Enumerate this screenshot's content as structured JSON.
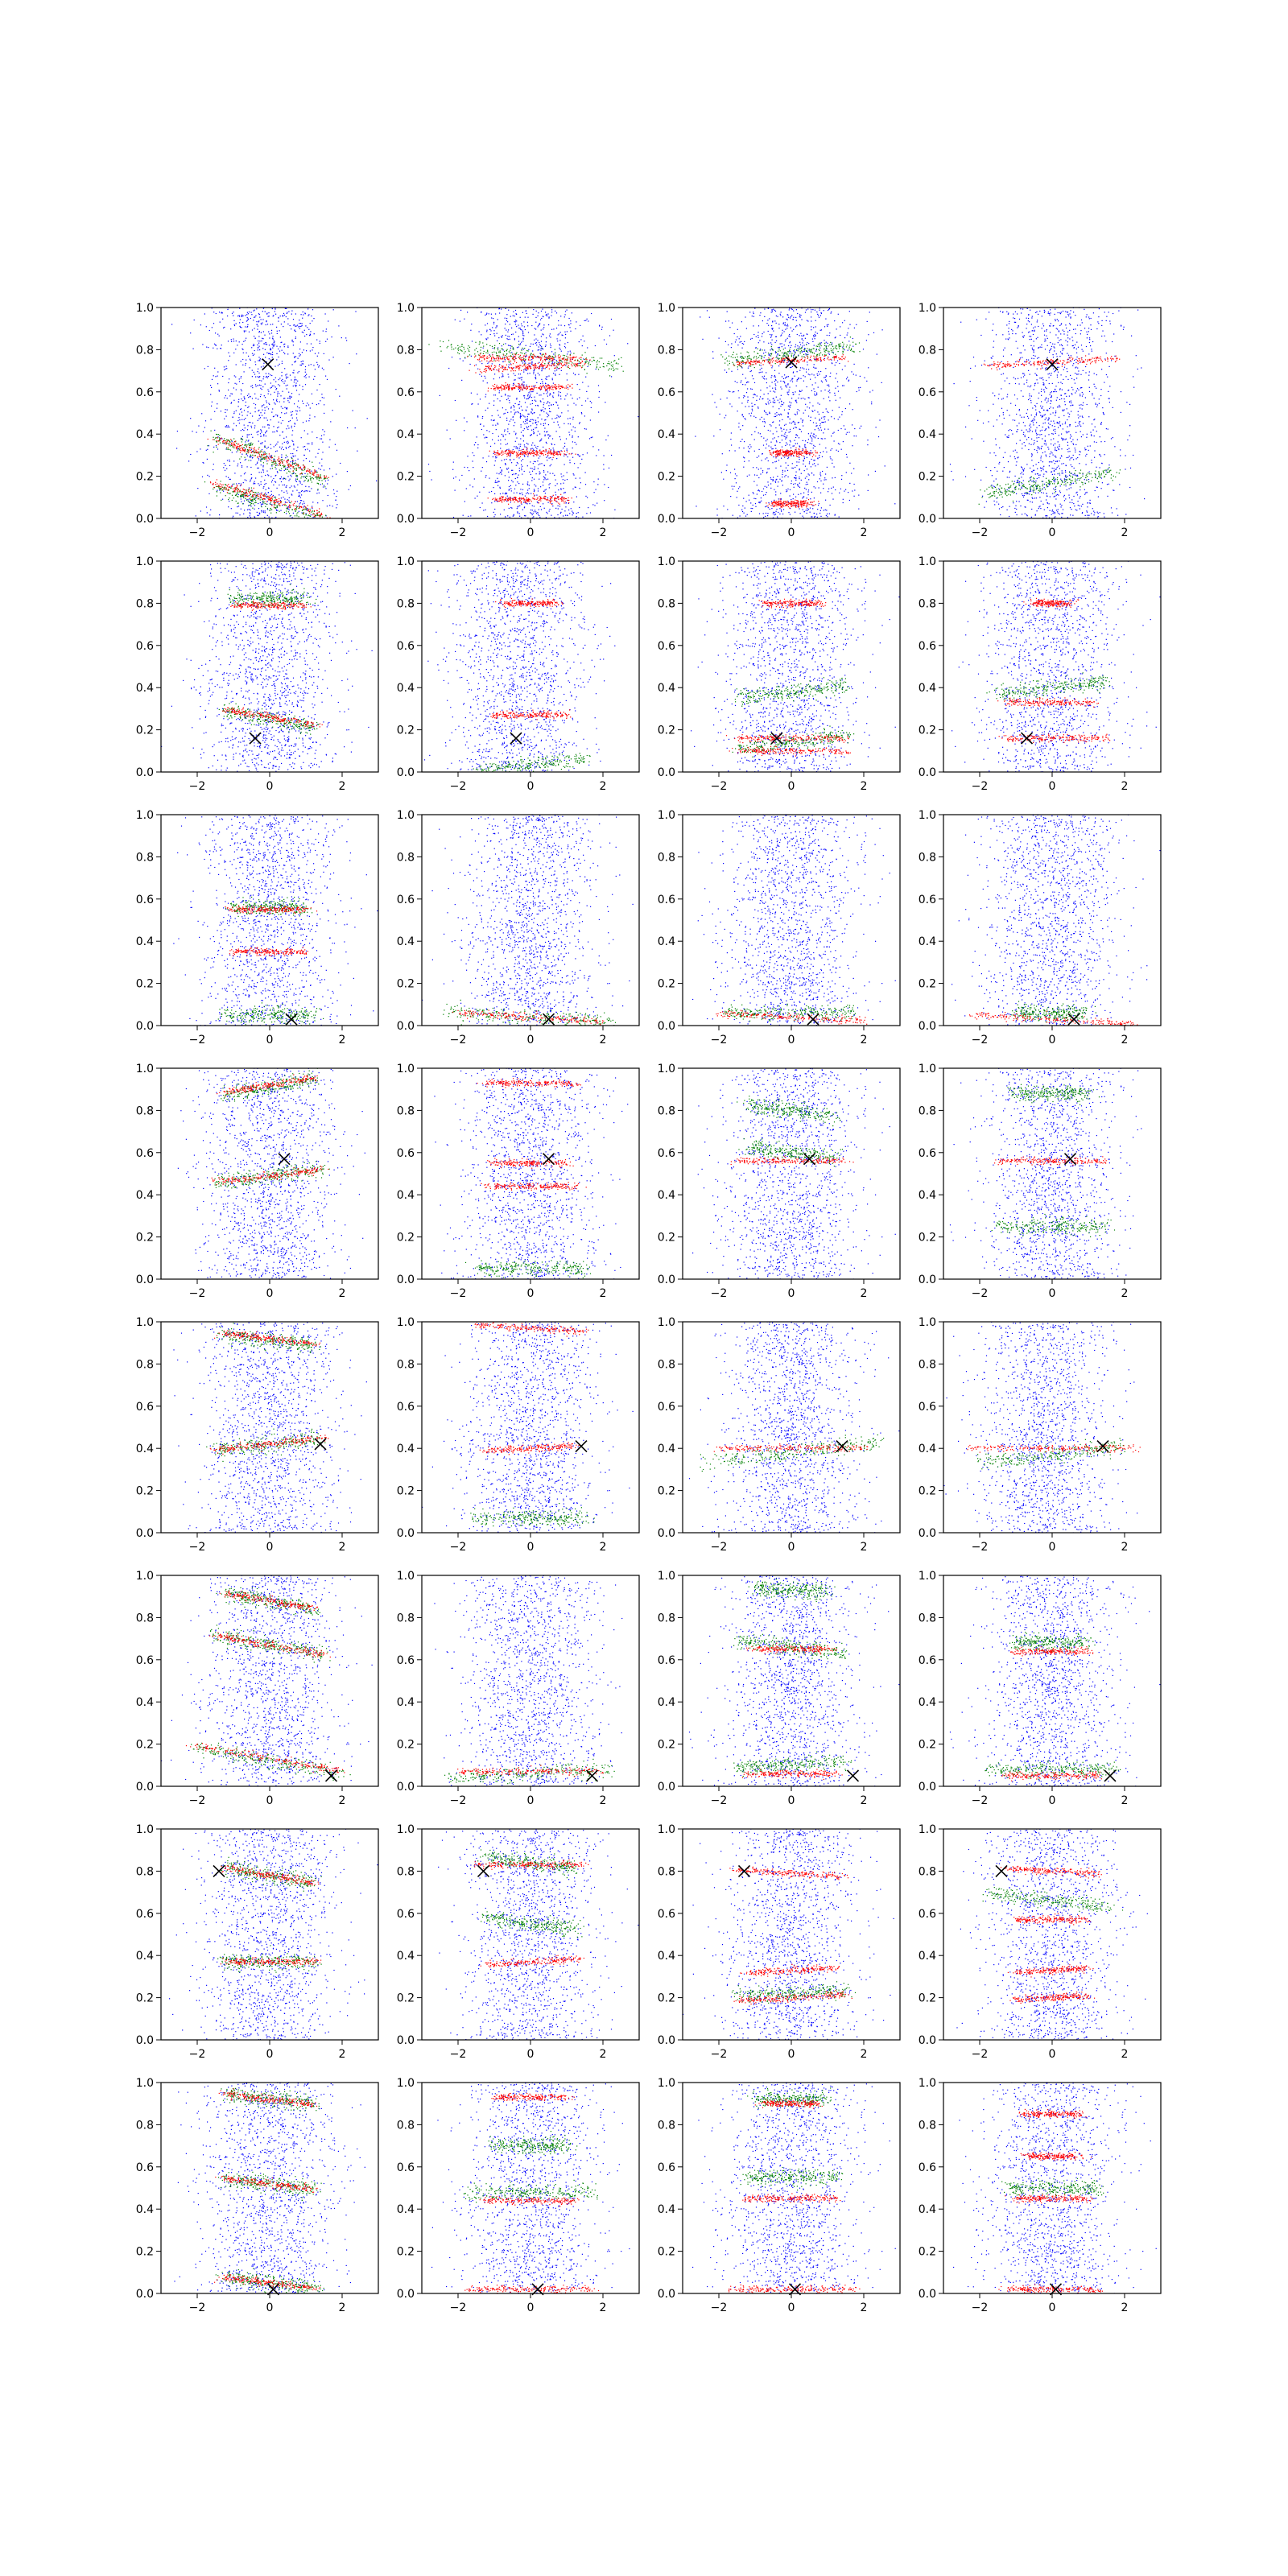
{
  "figure": {
    "layout": {
      "rows": 8,
      "cols": 4
    },
    "point_colors": {
      "background": "#0000ff",
      "series_red": "#ff0000",
      "series_green": "#008000",
      "marker": "#000000"
    },
    "shared_axes": {
      "xlim": [
        -3,
        3
      ],
      "ylim": [
        0,
        1
      ],
      "xticks": [
        -2,
        0,
        2
      ],
      "xtick_labels": [
        "−2",
        "0",
        "2"
      ],
      "yticks": [
        0.0,
        0.2,
        0.4,
        0.6,
        0.8,
        1.0
      ],
      "ytick_labels": [
        "0.0",
        "0.2",
        "0.4",
        "0.6",
        "0.8",
        "1.0"
      ]
    }
  },
  "chart_data": [
    {
      "type": "scatter",
      "row": 0,
      "col": 0,
      "marker": {
        "x": -0.05,
        "y": 0.73
      },
      "red_bands": [
        {
          "y": 0.29,
          "width": 3.0,
          "slope": -0.06
        },
        {
          "y": 0.09,
          "width": 3.0,
          "slope": -0.05
        }
      ],
      "green_bands": [
        {
          "y": 0.28,
          "width": 3.0,
          "slope": -0.07
        },
        {
          "y": 0.07,
          "width": 3.0,
          "slope": -0.05
        }
      ],
      "blue_center": 0.0
    },
    {
      "type": "scatter",
      "row": 0,
      "col": 1,
      "marker": null,
      "red_bands": [
        {
          "y": 0.76,
          "width": 3.0,
          "slope": 0.0
        },
        {
          "y": 0.72,
          "width": 3.0,
          "slope": 0.01
        },
        {
          "y": 0.62,
          "width": 2.0,
          "slope": 0.0
        },
        {
          "y": 0.31,
          "width": 2.0,
          "slope": 0.0
        },
        {
          "y": 0.09,
          "width": 2.0,
          "slope": 0.0
        }
      ],
      "green_bands": [
        {
          "y": 0.77,
          "width": 5.0,
          "slope": -0.02
        }
      ],
      "blue_center": 0.0
    },
    {
      "type": "scatter",
      "row": 0,
      "col": 2,
      "marker": {
        "x": 0.0,
        "y": 0.74
      },
      "red_bands": [
        {
          "y": 0.75,
          "width": 3.0,
          "slope": 0.01
        },
        {
          "y": 0.31,
          "width": 1.0,
          "slope": 0.0
        },
        {
          "y": 0.07,
          "width": 1.0,
          "slope": 0.0
        }
      ],
      "green_bands": [
        {
          "y": 0.78,
          "width": 3.5,
          "slope": 0.02
        }
      ],
      "blue_center": 0.0
    },
    {
      "type": "scatter",
      "row": 0,
      "col": 3,
      "marker": {
        "x": 0.0,
        "y": 0.73
      },
      "red_bands": [
        {
          "y": 0.74,
          "width": 3.5,
          "slope": 0.01
        }
      ],
      "green_bands": [
        {
          "y": 0.17,
          "width": 3.5,
          "slope": 0.03
        }
      ],
      "blue_center": 0.0
    },
    {
      "type": "scatter",
      "row": 1,
      "col": 0,
      "marker": {
        "x": -0.4,
        "y": 0.16
      },
      "red_bands": [
        {
          "y": 0.79,
          "width": 2.0,
          "slope": 0.0
        },
        {
          "y": 0.26,
          "width": 2.5,
          "slope": -0.03
        }
      ],
      "green_bands": [
        {
          "y": 0.82,
          "width": 2.0,
          "slope": 0.0
        },
        {
          "y": 0.25,
          "width": 2.5,
          "slope": -0.03
        }
      ],
      "blue_center": 0.0
    },
    {
      "type": "scatter",
      "row": 1,
      "col": 1,
      "marker": {
        "x": -0.4,
        "y": 0.16
      },
      "red_bands": [
        {
          "y": 0.8,
          "width": 1.5,
          "slope": 0.0
        },
        {
          "y": 0.27,
          "width": 2.0,
          "slope": 0.0
        }
      ],
      "green_bands": [
        {
          "y": 0.03,
          "width": 3.0,
          "slope": 0.02
        }
      ],
      "blue_center": -0.3
    },
    {
      "type": "scatter",
      "row": 1,
      "col": 2,
      "marker": {
        "x": -0.4,
        "y": 0.16
      },
      "red_bands": [
        {
          "y": 0.8,
          "width": 1.5,
          "slope": 0.0
        },
        {
          "y": 0.16,
          "width": 3.0,
          "slope": 0.0
        },
        {
          "y": 0.1,
          "width": 3.0,
          "slope": 0.0
        }
      ],
      "green_bands": [
        {
          "y": 0.14,
          "width": 3.0,
          "slope": 0.02
        },
        {
          "y": 0.38,
          "width": 3.0,
          "slope": 0.02
        }
      ],
      "blue_center": 0.0
    },
    {
      "type": "scatter",
      "row": 1,
      "col": 3,
      "marker": {
        "x": -0.7,
        "y": 0.16
      },
      "red_bands": [
        {
          "y": 0.16,
          "width": 3.0,
          "slope": 0.0
        },
        {
          "y": 0.33,
          "width": 2.5,
          "slope": 0.0
        },
        {
          "y": 0.8,
          "width": 1.0,
          "slope": 0.0
        }
      ],
      "green_bands": [
        {
          "y": 0.4,
          "width": 3.0,
          "slope": 0.02
        }
      ],
      "blue_center": 0.0
    },
    {
      "type": "scatter",
      "row": 2,
      "col": 0,
      "marker": {
        "x": 0.6,
        "y": 0.03
      },
      "red_bands": [
        {
          "y": 0.55,
          "width": 2.0,
          "slope": 0.0
        },
        {
          "y": 0.35,
          "width": 2.0,
          "slope": 0.0
        }
      ],
      "green_bands": [
        {
          "y": 0.56,
          "width": 2.0,
          "slope": 0.0
        },
        {
          "y": 0.05,
          "width": 2.5,
          "slope": 0.0
        }
      ],
      "blue_center": 0.0
    },
    {
      "type": "scatter",
      "row": 2,
      "col": 1,
      "marker": {
        "x": 0.5,
        "y": 0.03
      },
      "red_bands": [
        {
          "y": 0.04,
          "width": 4.0,
          "slope": -0.01
        }
      ],
      "green_bands": [
        {
          "y": 0.04,
          "width": 4.5,
          "slope": -0.01
        }
      ],
      "blue_center": 0.0
    },
    {
      "type": "scatter",
      "row": 2,
      "col": 2,
      "marker": {
        "x": 0.6,
        "y": 0.03
      },
      "red_bands": [
        {
          "y": 0.04,
          "width": 4.0,
          "slope": -0.01
        }
      ],
      "green_bands": [
        {
          "y": 0.06,
          "width": 3.5,
          "slope": 0.0
        }
      ],
      "blue_center": 0.0
    },
    {
      "type": "scatter",
      "row": 2,
      "col": 3,
      "marker": {
        "x": 0.6,
        "y": 0.03
      },
      "red_bands": [
        {
          "y": 0.03,
          "width": 4.5,
          "slope": -0.01
        }
      ],
      "green_bands": [
        {
          "y": 0.06,
          "width": 2.0,
          "slope": 0.0
        }
      ],
      "blue_center": 0.0
    },
    {
      "type": "scatter",
      "row": 3,
      "col": 0,
      "marker": {
        "x": 0.4,
        "y": 0.57
      },
      "red_bands": [
        {
          "y": 0.92,
          "width": 2.5,
          "slope": 0.03
        },
        {
          "y": 0.49,
          "width": 3.0,
          "slope": 0.02
        }
      ],
      "green_bands": [
        {
          "y": 0.91,
          "width": 2.5,
          "slope": 0.03
        },
        {
          "y": 0.49,
          "width": 3.0,
          "slope": 0.02
        }
      ],
      "blue_center": 0.0
    },
    {
      "type": "scatter",
      "row": 3,
      "col": 1,
      "marker": {
        "x": 0.5,
        "y": 0.57
      },
      "red_bands": [
        {
          "y": 0.93,
          "width": 2.5,
          "slope": 0.0
        },
        {
          "y": 0.55,
          "width": 2.0,
          "slope": 0.0
        },
        {
          "y": 0.44,
          "width": 2.5,
          "slope": 0.0
        }
      ],
      "green_bands": [
        {
          "y": 0.05,
          "width": 3.0,
          "slope": 0.0
        }
      ],
      "blue_center": 0.0
    },
    {
      "type": "scatter",
      "row": 3,
      "col": 2,
      "marker": {
        "x": 0.5,
        "y": 0.57
      },
      "red_bands": [
        {
          "y": 0.56,
          "width": 3.0,
          "slope": 0.0
        }
      ],
      "green_bands": [
        {
          "y": 0.8,
          "width": 2.5,
          "slope": -0.02
        },
        {
          "y": 0.6,
          "width": 2.5,
          "slope": -0.02
        }
      ],
      "blue_center": 0.0
    },
    {
      "type": "scatter",
      "row": 3,
      "col": 3,
      "marker": {
        "x": 0.5,
        "y": 0.57
      },
      "red_bands": [
        {
          "y": 0.56,
          "width": 3.0,
          "slope": 0.0
        }
      ],
      "green_bands": [
        {
          "y": 0.25,
          "width": 3.0,
          "slope": 0.0
        },
        {
          "y": 0.88,
          "width": 2.0,
          "slope": 0.0
        }
      ],
      "blue_center": 0.0
    },
    {
      "type": "scatter",
      "row": 4,
      "col": 0,
      "marker": {
        "x": 1.4,
        "y": 0.42
      },
      "red_bands": [
        {
          "y": 0.92,
          "width": 2.5,
          "slope": -0.02
        },
        {
          "y": 0.42,
          "width": 3.0,
          "slope": 0.02
        }
      ],
      "green_bands": [
        {
          "y": 0.91,
          "width": 2.5,
          "slope": -0.02
        },
        {
          "y": 0.42,
          "width": 3.0,
          "slope": 0.02
        }
      ],
      "blue_center": 0.0
    },
    {
      "type": "scatter",
      "row": 4,
      "col": 1,
      "marker": {
        "x": 1.4,
        "y": 0.41
      },
      "red_bands": [
        {
          "y": 0.97,
          "width": 3.0,
          "slope": -0.01
        },
        {
          "y": 0.4,
          "width": 2.5,
          "slope": 0.01
        }
      ],
      "green_bands": [
        {
          "y": 0.07,
          "width": 3.0,
          "slope": 0.0
        }
      ],
      "blue_center": 0.0
    },
    {
      "type": "scatter",
      "row": 4,
      "col": 2,
      "marker": {
        "x": 1.4,
        "y": 0.41
      },
      "red_bands": [
        {
          "y": 0.4,
          "width": 4.0,
          "slope": 0.0
        }
      ],
      "green_bands": [
        {
          "y": 0.38,
          "width": 5.0,
          "slope": 0.02
        }
      ],
      "blue_center": 0.0
    },
    {
      "type": "scatter",
      "row": 4,
      "col": 3,
      "marker": {
        "x": 1.4,
        "y": 0.41
      },
      "red_bands": [
        {
          "y": 0.4,
          "width": 4.5,
          "slope": 0.0
        }
      ],
      "green_bands": [
        {
          "y": 0.37,
          "width": 4.0,
          "slope": 0.02
        }
      ],
      "blue_center": -0.2
    },
    {
      "type": "scatter",
      "row": 5,
      "col": 0,
      "marker": {
        "x": 1.7,
        "y": 0.05
      },
      "red_bands": [
        {
          "y": 0.88,
          "width": 2.5,
          "slope": -0.03
        },
        {
          "y": 0.67,
          "width": 3.0,
          "slope": -0.03
        },
        {
          "y": 0.13,
          "width": 4.0,
          "slope": -0.03
        }
      ],
      "green_bands": [
        {
          "y": 0.88,
          "width": 2.5,
          "slope": -0.03
        },
        {
          "y": 0.67,
          "width": 3.0,
          "slope": -0.03
        },
        {
          "y": 0.12,
          "width": 4.0,
          "slope": -0.03
        }
      ],
      "blue_center": 0.0
    },
    {
      "type": "scatter",
      "row": 5,
      "col": 1,
      "marker": {
        "x": 1.7,
        "y": 0.05
      },
      "red_bands": [
        {
          "y": 0.07,
          "width": 4.0,
          "slope": 0.0
        }
      ],
      "green_bands": [
        {
          "y": 0.06,
          "width": 4.5,
          "slope": 0.01
        }
      ],
      "blue_center": 0.0
    },
    {
      "type": "scatter",
      "row": 5,
      "col": 2,
      "marker": {
        "x": 1.7,
        "y": 0.05
      },
      "red_bands": [
        {
          "y": 0.06,
          "width": 2.5,
          "slope": 0.0
        },
        {
          "y": 0.65,
          "width": 2.0,
          "slope": 0.0
        }
      ],
      "green_bands": [
        {
          "y": 0.66,
          "width": 3.0,
          "slope": -0.02
        },
        {
          "y": 0.1,
          "width": 3.0,
          "slope": 0.01
        },
        {
          "y": 0.93,
          "width": 2.0,
          "slope": -0.01
        }
      ],
      "blue_center": 0.0
    },
    {
      "type": "scatter",
      "row": 5,
      "col": 3,
      "marker": {
        "x": 1.6,
        "y": 0.05
      },
      "red_bands": [
        {
          "y": 0.05,
          "width": 2.5,
          "slope": 0.0
        },
        {
          "y": 0.64,
          "width": 2.0,
          "slope": 0.0
        }
      ],
      "green_bands": [
        {
          "y": 0.68,
          "width": 2.0,
          "slope": 0.0
        },
        {
          "y": 0.08,
          "width": 3.5,
          "slope": 0.0
        }
      ],
      "blue_center": 0.0
    },
    {
      "type": "scatter",
      "row": 6,
      "col": 0,
      "marker": {
        "x": -1.4,
        "y": 0.8
      },
      "red_bands": [
        {
          "y": 0.78,
          "width": 2.5,
          "slope": -0.03
        },
        {
          "y": 0.37,
          "width": 2.5,
          "slope": 0.0
        }
      ],
      "green_bands": [
        {
          "y": 0.78,
          "width": 2.5,
          "slope": -0.03
        },
        {
          "y": 0.37,
          "width": 2.5,
          "slope": 0.0
        }
      ],
      "blue_center": 0.0
    },
    {
      "type": "scatter",
      "row": 6,
      "col": 1,
      "marker": {
        "x": -1.3,
        "y": 0.8
      },
      "red_bands": [
        {
          "y": 0.83,
          "width": 3.0,
          "slope": 0.0
        },
        {
          "y": 0.37,
          "width": 2.5,
          "slope": 0.01
        }
      ],
      "green_bands": [
        {
          "y": 0.84,
          "width": 2.5,
          "slope": -0.02
        },
        {
          "y": 0.55,
          "width": 2.5,
          "slope": -0.02
        }
      ],
      "blue_center": 0.0
    },
    {
      "type": "scatter",
      "row": 6,
      "col": 2,
      "marker": {
        "x": -1.3,
        "y": 0.8
      },
      "red_bands": [
        {
          "y": 0.79,
          "width": 3.0,
          "slope": -0.01
        },
        {
          "y": 0.33,
          "width": 2.5,
          "slope": 0.01
        },
        {
          "y": 0.2,
          "width": 3.0,
          "slope": 0.01
        }
      ],
      "green_bands": [
        {
          "y": 0.22,
          "width": 3.0,
          "slope": 0.01
        }
      ],
      "blue_center": 0.0
    },
    {
      "type": "scatter",
      "row": 6,
      "col": 3,
      "marker": {
        "x": -1.4,
        "y": 0.8
      },
      "red_bands": [
        {
          "y": 0.8,
          "width": 2.5,
          "slope": -0.01
        },
        {
          "y": 0.57,
          "width": 2.0,
          "slope": 0.0
        },
        {
          "y": 0.33,
          "width": 2.0,
          "slope": 0.01
        },
        {
          "y": 0.2,
          "width": 2.0,
          "slope": 0.01
        }
      ],
      "green_bands": [
        {
          "y": 0.66,
          "width": 3.5,
          "slope": -0.02
        }
      ],
      "blue_center": 0.0
    },
    {
      "type": "scatter",
      "row": 7,
      "col": 0,
      "marker": {
        "x": 0.1,
        "y": 0.02
      },
      "red_bands": [
        {
          "y": 0.92,
          "width": 2.5,
          "slope": -0.02
        },
        {
          "y": 0.52,
          "width": 2.5,
          "slope": -0.02
        },
        {
          "y": 0.05,
          "width": 2.5,
          "slope": -0.02
        }
      ],
      "green_bands": [
        {
          "y": 0.92,
          "width": 2.5,
          "slope": -0.02
        },
        {
          "y": 0.52,
          "width": 2.5,
          "slope": -0.02
        },
        {
          "y": 0.05,
          "width": 2.5,
          "slope": -0.02
        }
      ],
      "blue_center": 0.0
    },
    {
      "type": "scatter",
      "row": 7,
      "col": 1,
      "marker": {
        "x": 0.2,
        "y": 0.02
      },
      "red_bands": [
        {
          "y": 0.44,
          "width": 2.5,
          "slope": 0.0
        },
        {
          "y": 0.02,
          "width": 3.5,
          "slope": 0.0
        },
        {
          "y": 0.93,
          "width": 2.0,
          "slope": 0.0
        }
      ],
      "green_bands": [
        {
          "y": 0.48,
          "width": 3.5,
          "slope": 0.0
        },
        {
          "y": 0.7,
          "width": 2.0,
          "slope": 0.0
        }
      ],
      "blue_center": 0.0
    },
    {
      "type": "scatter",
      "row": 7,
      "col": 2,
      "marker": {
        "x": 0.1,
        "y": 0.02
      },
      "red_bands": [
        {
          "y": 0.45,
          "width": 2.5,
          "slope": 0.0
        },
        {
          "y": 0.02,
          "width": 3.5,
          "slope": 0.0
        },
        {
          "y": 0.9,
          "width": 1.5,
          "slope": 0.0
        }
      ],
      "green_bands": [
        {
          "y": 0.55,
          "width": 2.5,
          "slope": 0.0
        },
        {
          "y": 0.92,
          "width": 2.0,
          "slope": 0.0
        }
      ],
      "blue_center": 0.0
    },
    {
      "type": "scatter",
      "row": 7,
      "col": 3,
      "marker": {
        "x": 0.1,
        "y": 0.02
      },
      "red_bands": [
        {
          "y": 0.45,
          "width": 2.0,
          "slope": 0.0
        },
        {
          "y": 0.02,
          "width": 2.5,
          "slope": 0.0
        },
        {
          "y": 0.85,
          "width": 1.5,
          "slope": 0.0
        },
        {
          "y": 0.65,
          "width": 1.5,
          "slope": 0.0
        }
      ],
      "green_bands": [
        {
          "y": 0.5,
          "width": 2.5,
          "slope": 0.0
        }
      ],
      "blue_center": 0.0
    }
  ]
}
